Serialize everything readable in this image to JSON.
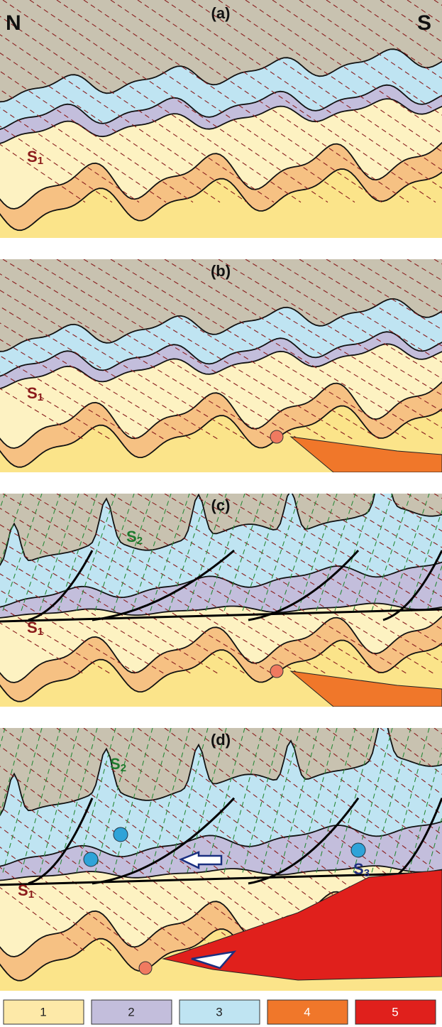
{
  "header": {
    "north": "N",
    "south": "S"
  },
  "panels": [
    {
      "label": "(a)",
      "annotations": [
        {
          "text": "S",
          "sub": "1"
        }
      ]
    },
    {
      "label": "(b)",
      "annotations": [
        {
          "text": "S",
          "sub": "1"
        }
      ]
    },
    {
      "label": "(c)",
      "annotations": [
        {
          "text": "S",
          "sub": "2"
        },
        {
          "text": "S",
          "sub": "1"
        }
      ]
    },
    {
      "label": "(d)",
      "annotations": [
        {
          "text": "S",
          "sub": "2"
        },
        {
          "text": "S",
          "sub": "3"
        },
        {
          "text": "S",
          "sub": "1"
        }
      ]
    }
  ],
  "legend": [
    "1",
    "2",
    "3",
    "4",
    "5"
  ]
}
